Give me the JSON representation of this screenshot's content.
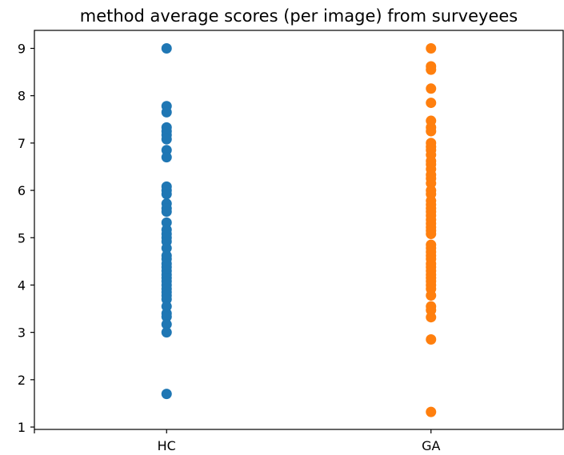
{
  "chart_data": {
    "type": "scatter",
    "title": "method average scores (per image) from surveyees",
    "xlabel": "",
    "ylabel": "",
    "categories": [
      "HC",
      "GA"
    ],
    "ylim": [
      0.95,
      9.38
    ],
    "yticks": [
      1,
      2,
      3,
      4,
      5,
      6,
      7,
      8,
      9
    ],
    "grid": false,
    "series": [
      {
        "category": "HC",
        "color": "#1f77b4",
        "values": [
          9.0,
          7.78,
          7.65,
          7.33,
          7.25,
          7.17,
          7.08,
          6.85,
          6.7,
          6.08,
          6.0,
          5.92,
          5.72,
          5.62,
          5.55,
          5.32,
          5.17,
          5.08,
          5.0,
          4.92,
          4.78,
          4.62,
          4.55,
          4.45,
          4.38,
          4.3,
          4.22,
          4.15,
          4.08,
          4.0,
          3.92,
          3.85,
          3.78,
          3.7,
          3.55,
          3.4,
          3.33,
          3.17,
          3.0,
          1.7
        ]
      },
      {
        "category": "GA",
        "color": "#ff7f0e",
        "values": [
          9.0,
          8.62,
          8.55,
          8.15,
          7.85,
          7.47,
          7.33,
          7.25,
          7.0,
          6.92,
          6.85,
          6.75,
          6.62,
          6.55,
          6.45,
          6.33,
          6.25,
          6.15,
          6.0,
          5.92,
          5.78,
          5.7,
          5.62,
          5.55,
          5.47,
          5.38,
          5.3,
          5.22,
          5.15,
          5.08,
          4.85,
          4.78,
          4.7,
          4.62,
          4.55,
          4.45,
          4.38,
          4.3,
          4.22,
          4.15,
          4.08,
          4.0,
          3.92,
          3.78,
          3.55,
          3.47,
          3.32,
          2.85,
          1.32
        ]
      }
    ]
  }
}
